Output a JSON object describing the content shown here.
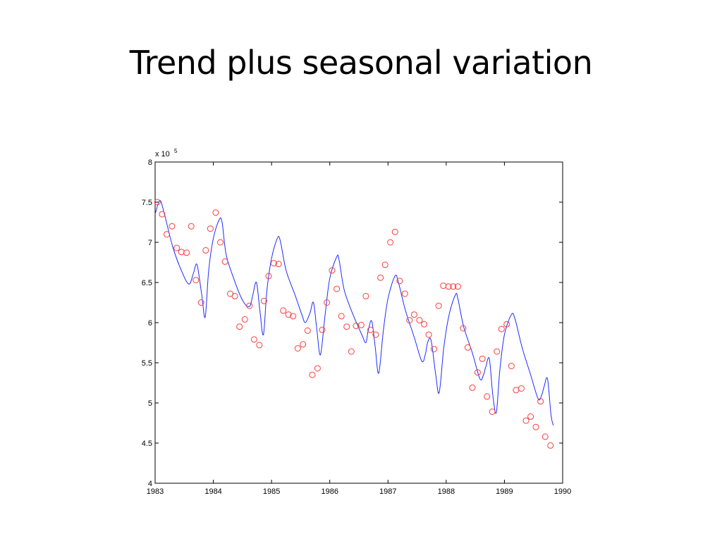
{
  "slide": {
    "title": "Trend plus seasonal variation"
  },
  "chart_data": {
    "type": "scatter",
    "title": "",
    "xlabel": "",
    "ylabel": "",
    "y_multiplier_label": "x 10",
    "y_multiplier_exponent": "5",
    "xlim": [
      1983,
      1990
    ],
    "ylim": [
      4,
      8
    ],
    "x_ticks": [
      1983,
      1984,
      1985,
      1986,
      1987,
      1988,
      1989,
      1990
    ],
    "y_ticks": [
      4,
      4.5,
      5,
      5.5,
      6,
      6.5,
      7,
      7.5,
      8
    ],
    "y_tick_labels": [
      "4",
      "4.5",
      "5",
      "5.5",
      "6",
      "6.5",
      "7",
      "7.5",
      "8"
    ],
    "grid": false,
    "colors": {
      "observed": "#ff3b3b",
      "fitted": "#1f2dff",
      "axes": "#000000"
    },
    "series": [
      {
        "kind": "markers",
        "marker": "circle-open",
        "x": [
          1983.04,
          1983.12,
          1983.2,
          1983.29,
          1983.37,
          1983.45,
          1983.54,
          1983.62,
          1983.7,
          1983.79,
          1983.87,
          1983.95,
          1984.04,
          1984.12,
          1984.2,
          1984.29,
          1984.37,
          1984.45,
          1984.54,
          1984.62,
          1984.7,
          1984.79,
          1984.87,
          1984.95,
          1985.04,
          1985.12,
          1985.2,
          1985.29,
          1985.37,
          1985.45,
          1985.54,
          1985.62,
          1985.7,
          1985.79,
          1985.87,
          1985.95,
          1986.04,
          1986.12,
          1986.2,
          1986.29,
          1986.37,
          1986.45,
          1986.54,
          1986.62,
          1986.7,
          1986.79,
          1986.87,
          1986.95,
          1987.04,
          1987.12,
          1987.2,
          1987.29,
          1987.37,
          1987.45,
          1987.54,
          1987.62,
          1987.7,
          1987.79,
          1987.87,
          1987.95,
          1988.04,
          1988.12,
          1988.2,
          1988.29,
          1988.37,
          1988.45,
          1988.54,
          1988.62,
          1988.7,
          1988.79,
          1988.87,
          1988.95,
          1989.04,
          1989.12,
          1989.2,
          1989.29,
          1989.37,
          1989.45,
          1989.54,
          1989.62,
          1989.7,
          1989.79
        ],
        "y": [
          7.5,
          7.35,
          7.1,
          7.2,
          6.93,
          6.88,
          6.87,
          7.2,
          6.53,
          6.25,
          6.9,
          7.17,
          7.37,
          7.0,
          6.76,
          6.36,
          6.33,
          5.95,
          6.04,
          6.21,
          5.79,
          5.72,
          6.27,
          6.58,
          6.74,
          6.73,
          6.15,
          6.1,
          6.08,
          5.68,
          5.73,
          5.9,
          5.35,
          5.43,
          5.91,
          6.25,
          6.65,
          6.42,
          6.08,
          5.95,
          5.64,
          5.96,
          5.97,
          6.33,
          5.91,
          5.85,
          6.56,
          6.72,
          7.0,
          7.13,
          6.52,
          6.36,
          6.03,
          6.1,
          6.03,
          5.98,
          5.85,
          5.67,
          6.21,
          6.46,
          6.45,
          6.45,
          6.45,
          5.93,
          5.69,
          5.19,
          5.38,
          5.55,
          5.08,
          4.89,
          5.64,
          5.92,
          5.98,
          5.46,
          5.16,
          5.18,
          4.78,
          4.83,
          4.7,
          5.02,
          4.58,
          4.47
        ]
      },
      {
        "kind": "line",
        "x": [
          1983.0,
          1983.08,
          1983.15,
          1983.3,
          1983.45,
          1983.58,
          1983.66,
          1983.72,
          1983.8,
          1983.86,
          1983.92,
          1984.0,
          1984.1,
          1984.15,
          1984.22,
          1984.35,
          1984.5,
          1984.62,
          1984.68,
          1984.74,
          1984.8,
          1984.86,
          1984.92,
          1985.0,
          1985.1,
          1985.15,
          1985.25,
          1985.4,
          1985.52,
          1985.58,
          1985.66,
          1985.72,
          1985.78,
          1985.84,
          1985.92,
          1986.0,
          1986.12,
          1986.16,
          1986.25,
          1986.4,
          1986.55,
          1986.62,
          1986.66,
          1986.72,
          1986.78,
          1986.84,
          1986.92,
          1987.0,
          1987.12,
          1987.18,
          1987.3,
          1987.45,
          1987.58,
          1987.64,
          1987.68,
          1987.74,
          1987.82,
          1987.88,
          1987.96,
          1988.05,
          1988.16,
          1988.2,
          1988.3,
          1988.45,
          1988.58,
          1988.64,
          1988.68,
          1988.74,
          1988.8,
          1988.86,
          1988.92,
          1989.0,
          1989.12,
          1989.18,
          1989.3,
          1989.45,
          1989.58,
          1989.64,
          1989.68,
          1989.74,
          1989.8,
          1989.84
        ],
        "y": [
          7.35,
          7.52,
          7.38,
          6.95,
          6.65,
          6.48,
          6.62,
          6.72,
          6.35,
          6.07,
          6.65,
          7.05,
          7.28,
          7.25,
          6.85,
          6.55,
          6.28,
          6.2,
          6.35,
          6.5,
          6.15,
          5.85,
          6.4,
          6.8,
          7.05,
          7.02,
          6.65,
          6.35,
          6.1,
          6.0,
          6.12,
          6.25,
          5.9,
          5.6,
          6.1,
          6.55,
          6.82,
          6.78,
          6.4,
          6.1,
          5.85,
          5.75,
          5.9,
          6.02,
          5.7,
          5.37,
          5.9,
          6.3,
          6.58,
          6.5,
          6.15,
          5.82,
          5.52,
          5.6,
          5.75,
          5.78,
          5.35,
          5.13,
          5.7,
          6.1,
          6.35,
          6.3,
          5.95,
          5.62,
          5.3,
          5.35,
          5.45,
          5.55,
          5.1,
          4.88,
          5.4,
          5.85,
          6.1,
          6.05,
          5.7,
          5.35,
          5.05,
          5.1,
          5.2,
          5.3,
          4.85,
          4.72
        ]
      }
    ]
  }
}
